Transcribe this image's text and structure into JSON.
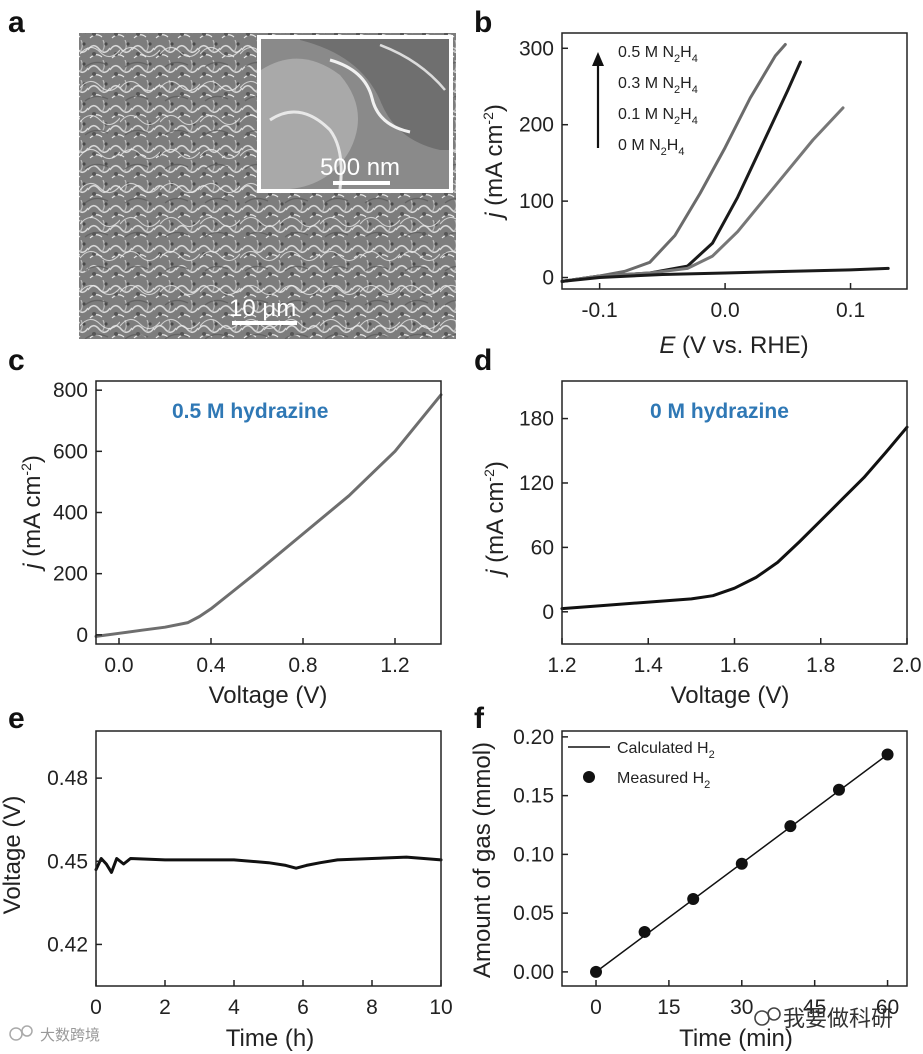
{
  "panel_labels": [
    "a",
    "b",
    "c",
    "d",
    "e",
    "f"
  ],
  "sem": {
    "scale_main": "10 μm",
    "scale_inset": "500 nm"
  },
  "chart_data": [
    {
      "panel": "b",
      "type": "line",
      "xlabel_italic": "E",
      "xlabel_rest": " (V vs. RHE)",
      "ylabel_italic": "j",
      "ylabel_rest": " (mA cm",
      "ylabel_sup": "-2",
      "ylabel_close": ")",
      "xlim": [
        -0.13,
        0.145
      ],
      "ylim": [
        -15,
        320
      ],
      "xticks": [
        -0.1,
        0.0,
        0.1
      ],
      "xtick_labels": [
        "-0.1",
        "0.0",
        "0.1"
      ],
      "yticks": [
        0,
        100,
        200,
        300
      ],
      "ytick_labels": [
        "0",
        "100",
        "200",
        "300"
      ],
      "legend_order_top_to_bottom": [
        "0.5 M N2H4",
        "0.3 M N2H4",
        "0.1 M N2H4",
        "0 M N2H4"
      ],
      "legend": [
        {
          "parts": [
            "0.5 M N",
            "2",
            "H",
            "4"
          ]
        },
        {
          "parts": [
            "0.3 M N",
            "2",
            "H",
            "4"
          ]
        },
        {
          "parts": [
            "0.1 M N",
            "2",
            "H",
            "4"
          ]
        },
        {
          "parts": [
            "0 M N",
            "2",
            "H",
            "4"
          ]
        }
      ],
      "series": [
        {
          "color": "#6b6b6b",
          "x": [
            -0.13,
            -0.1,
            -0.08,
            -0.06,
            -0.04,
            -0.02,
            0.0,
            0.02,
            0.04,
            0.048
          ],
          "y": [
            -5,
            2,
            8,
            20,
            55,
            110,
            170,
            235,
            290,
            305
          ]
        },
        {
          "color": "#1a1a1a",
          "x": [
            -0.13,
            -0.1,
            -0.06,
            -0.03,
            -0.01,
            0.01,
            0.03,
            0.05,
            0.06
          ],
          "y": [
            -5,
            2,
            6,
            15,
            45,
            105,
            175,
            245,
            282
          ]
        },
        {
          "color": "#777777",
          "x": [
            -0.13,
            -0.1,
            -0.06,
            -0.03,
            -0.01,
            0.01,
            0.03,
            0.05,
            0.07,
            0.094
          ],
          "y": [
            -5,
            2,
            6,
            12,
            28,
            60,
            100,
            140,
            180,
            222
          ]
        },
        {
          "color": "#1a1a1a",
          "x": [
            -0.13,
            -0.1,
            -0.05,
            0.0,
            0.05,
            0.1,
            0.13
          ],
          "y": [
            -5,
            0,
            4,
            6,
            8,
            10,
            12
          ]
        }
      ]
    },
    {
      "panel": "c",
      "type": "line",
      "annotation": "0.5 M hydrazine",
      "xlabel": "Voltage (V)",
      "ylabel_italic": "j",
      "ylabel_rest": " (mA cm",
      "ylabel_sup": "-2",
      "ylabel_close": ")",
      "xlim": [
        -0.1,
        1.4
      ],
      "ylim": [
        -30,
        830
      ],
      "xticks": [
        0.0,
        0.4,
        0.8,
        1.2
      ],
      "xtick_labels": [
        "0.0",
        "0.4",
        "0.8",
        "1.2"
      ],
      "yticks": [
        0,
        200,
        400,
        600,
        800
      ],
      "ytick_labels": [
        "0",
        "200",
        "400",
        "600",
        "800"
      ],
      "series": [
        {
          "color": "#6e6e6e",
          "x": [
            -0.1,
            0.0,
            0.1,
            0.2,
            0.3,
            0.35,
            0.4,
            0.5,
            0.6,
            0.8,
            1.0,
            1.2,
            1.4
          ],
          "y": [
            -5,
            5,
            15,
            25,
            40,
            60,
            85,
            145,
            205,
            330,
            455,
            600,
            785
          ]
        }
      ]
    },
    {
      "panel": "d",
      "type": "line",
      "annotation": "0 M hydrazine",
      "xlabel": "Voltage (V)",
      "ylabel_italic": "j",
      "ylabel_rest": " (mA cm",
      "ylabel_sup": "-2",
      "ylabel_close": ")",
      "xlim": [
        1.2,
        2.0
      ],
      "ylim": [
        -30,
        215
      ],
      "xticks": [
        1.2,
        1.4,
        1.6,
        1.8,
        2.0
      ],
      "xtick_labels": [
        "1.2",
        "1.4",
        "1.6",
        "1.8",
        "2.0"
      ],
      "yticks": [
        0,
        60,
        120,
        180
      ],
      "ytick_labels": [
        "0",
        "60",
        "120",
        "180"
      ],
      "series": [
        {
          "color": "#111111",
          "x": [
            1.2,
            1.3,
            1.4,
            1.5,
            1.55,
            1.6,
            1.65,
            1.7,
            1.75,
            1.8,
            1.85,
            1.9,
            1.95,
            2.0
          ],
          "y": [
            3,
            6,
            9,
            12,
            15,
            22,
            32,
            46,
            65,
            85,
            105,
            125,
            148,
            172
          ]
        }
      ]
    },
    {
      "panel": "e",
      "type": "line",
      "xlabel": "Time (h)",
      "ylabel": "Voltage (V)",
      "xlim": [
        0,
        10
      ],
      "ylim": [
        0.405,
        0.497
      ],
      "xticks": [
        0,
        2,
        4,
        6,
        8,
        10
      ],
      "xtick_labels": [
        "0",
        "2",
        "4",
        "6",
        "8",
        "10"
      ],
      "yticks": [
        0.42,
        0.45,
        0.48
      ],
      "ytick_labels": [
        "0.42",
        "0.45",
        "0.48"
      ],
      "series": [
        {
          "color": "#111111",
          "x": [
            0,
            0.15,
            0.3,
            0.45,
            0.6,
            0.8,
            1.0,
            2.0,
            3.0,
            4.0,
            5.0,
            5.5,
            5.8,
            6.1,
            6.5,
            7.0,
            8.0,
            9.0,
            9.5,
            10.0
          ],
          "y": [
            0.447,
            0.451,
            0.449,
            0.446,
            0.451,
            0.449,
            0.451,
            0.4505,
            0.4505,
            0.4505,
            0.4495,
            0.4485,
            0.4475,
            0.4485,
            0.4495,
            0.4505,
            0.451,
            0.4515,
            0.451,
            0.4505
          ]
        }
      ]
    },
    {
      "panel": "f",
      "type": "scatter",
      "xlabel": "Time (min)",
      "ylabel": "Amount of gas (mmol)",
      "xlim": [
        -7,
        64
      ],
      "ylim": [
        -0.012,
        0.205
      ],
      "xticks": [
        0,
        15,
        30,
        45,
        60
      ],
      "xtick_labels": [
        "0",
        "15",
        "30",
        "45",
        "60"
      ],
      "yticks": [
        0.0,
        0.05,
        0.1,
        0.15,
        0.2
      ],
      "ytick_labels": [
        "0.00",
        "0.05",
        "0.10",
        "0.15",
        "0.20"
      ],
      "legend": [
        {
          "kind": "line",
          "parts": [
            "Calculated H",
            "2"
          ]
        },
        {
          "kind": "marker",
          "parts": [
            "Measured H",
            "2"
          ]
        }
      ],
      "series": [
        {
          "name": "Calculated H2",
          "kind": "line",
          "color": "#111111",
          "x": [
            0,
            60
          ],
          "y": [
            0.0,
            0.185
          ]
        },
        {
          "name": "Measured H2",
          "kind": "marker",
          "color": "#111111",
          "x": [
            0,
            10,
            20,
            30,
            40,
            50,
            60
          ],
          "y": [
            0.0,
            0.034,
            0.062,
            0.092,
            0.124,
            0.155,
            0.185
          ]
        }
      ]
    }
  ],
  "watermark": {
    "left": "大数跨境",
    "right": "我要做科研"
  }
}
